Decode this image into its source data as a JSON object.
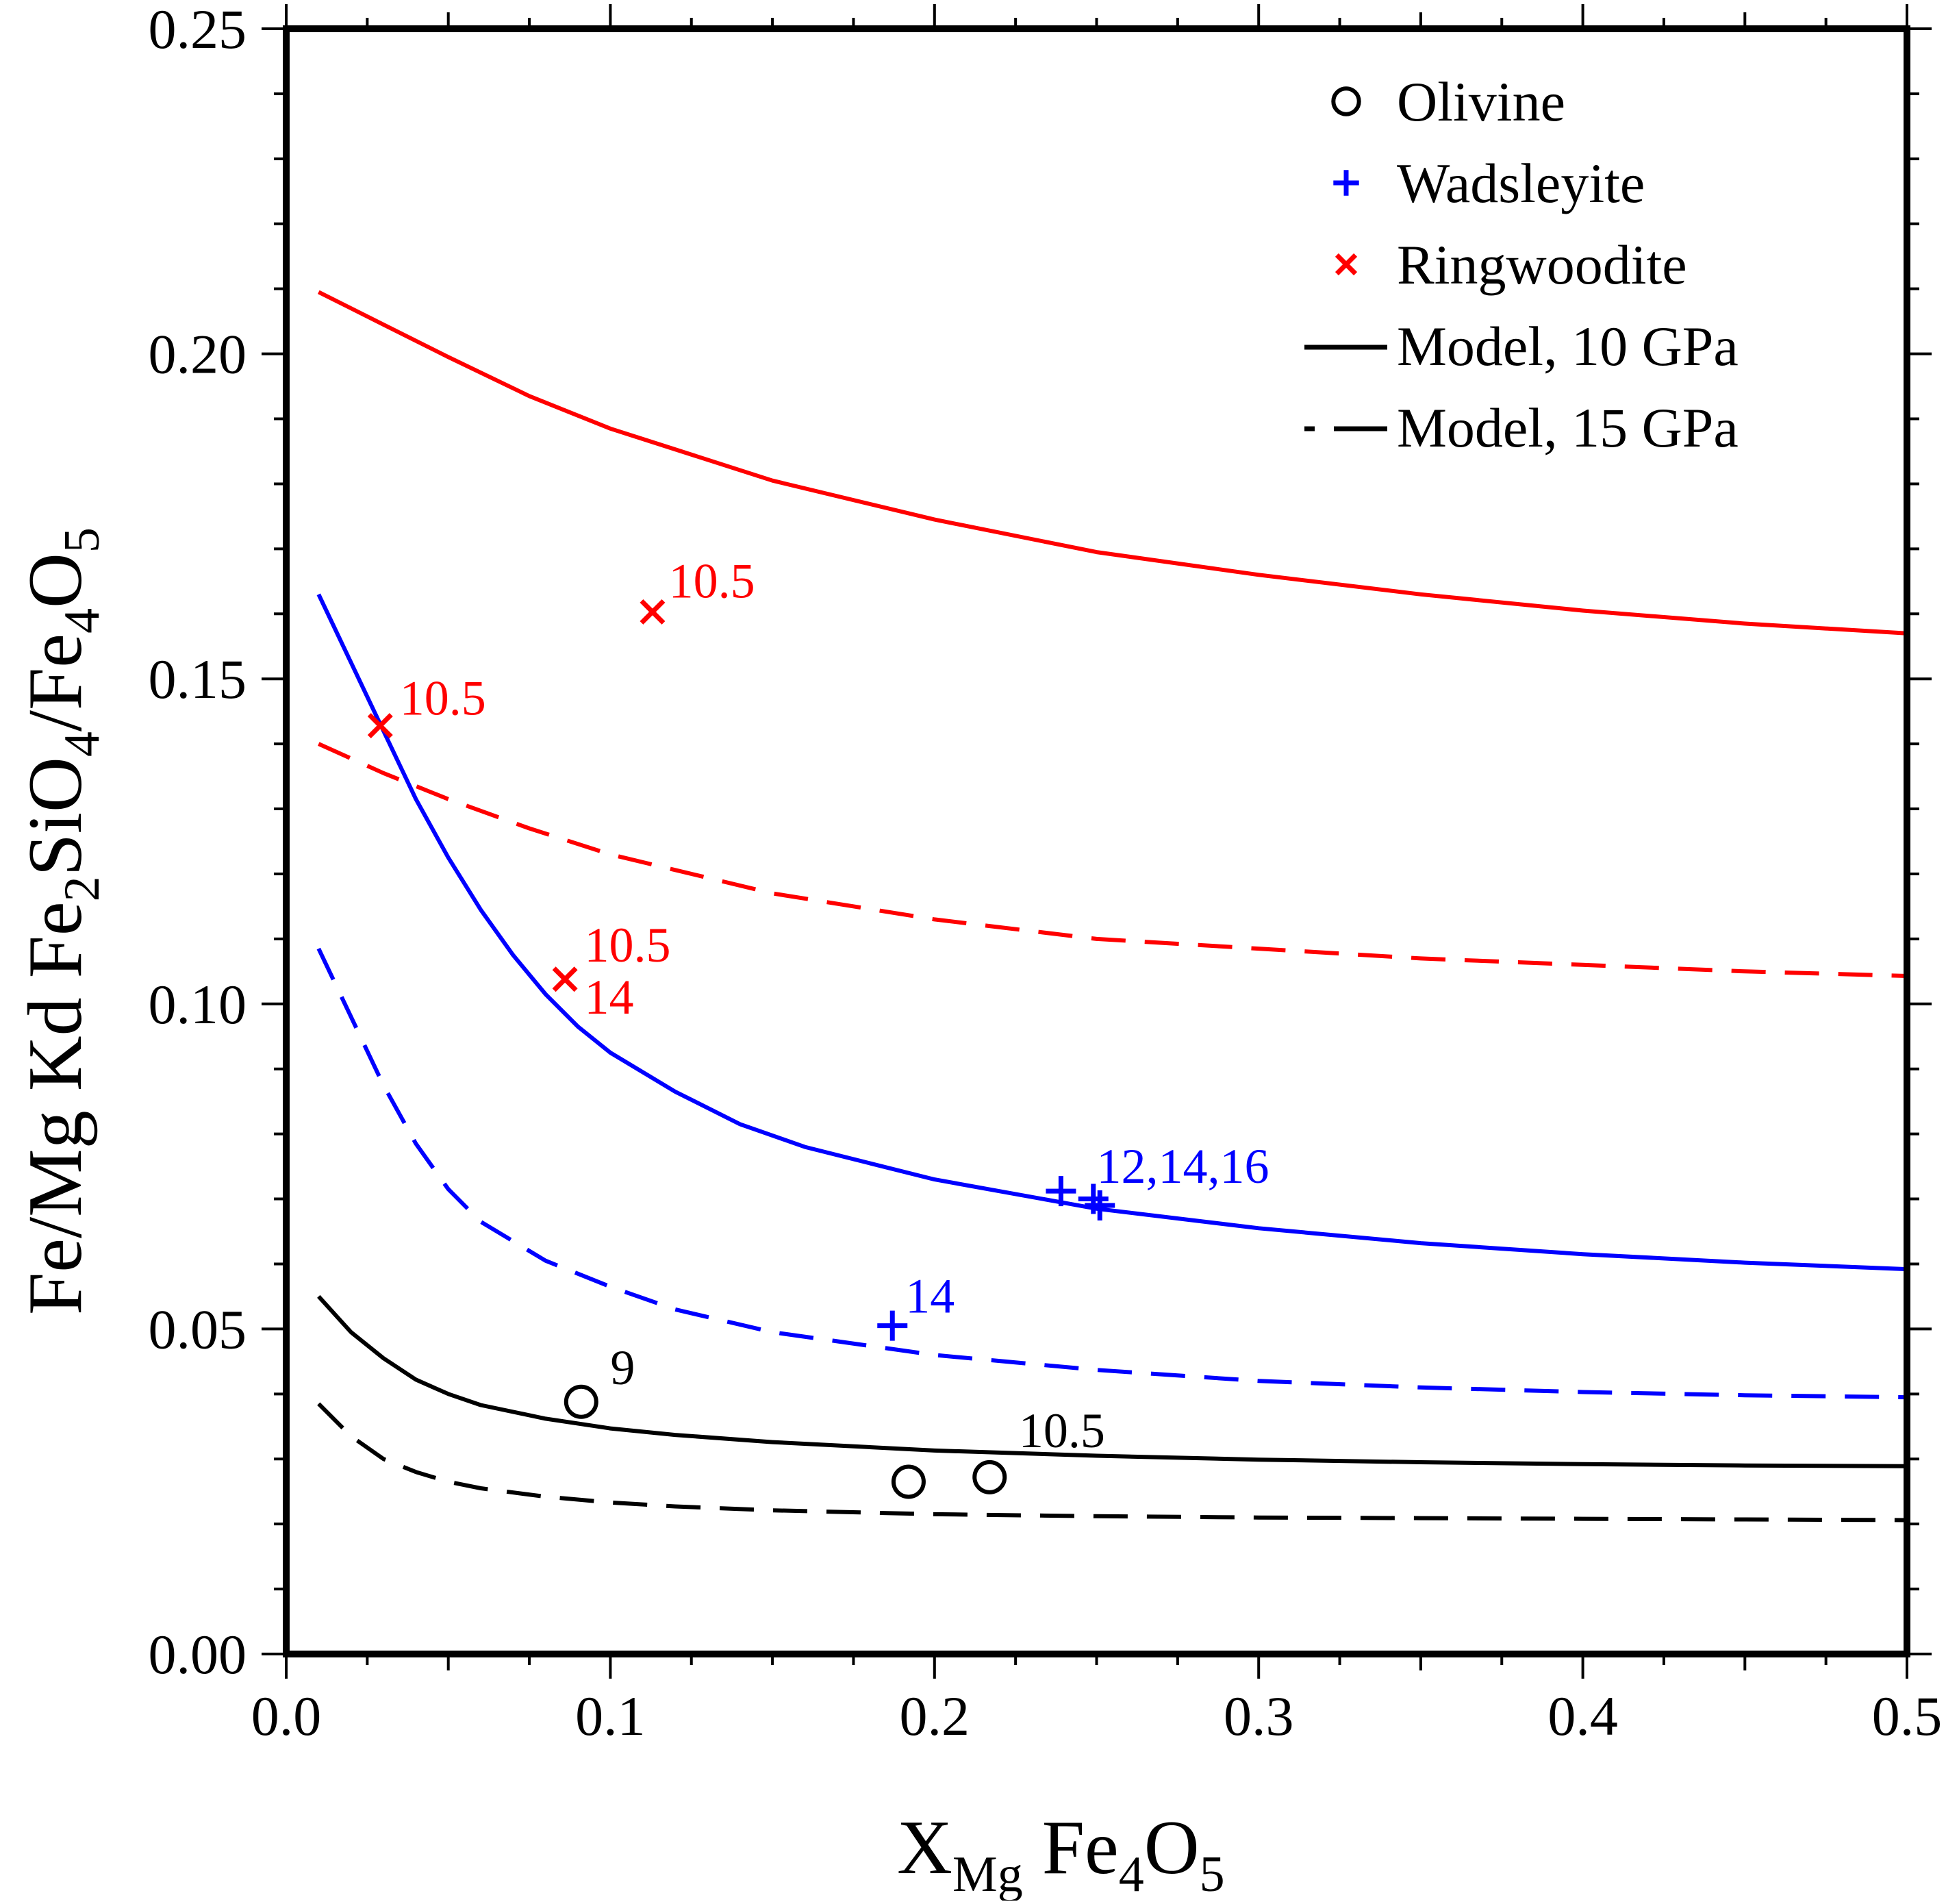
{
  "chart_data": {
    "type": "scatter",
    "xlabel": {
      "main": "X",
      "sub": "Mg",
      "tail": " Fe",
      "sub2": "4",
      "tail2": "O",
      "sub3": "5"
    },
    "ylabel": {
      "p1": "Fe/Mg Kd Fe",
      "s1": "2",
      "p2": "SiO",
      "s2": "4",
      "p3": "/Fe",
      "s3": "4",
      "p4": "O",
      "s4": "5"
    },
    "xlim": [
      0,
      0.5
    ],
    "ylim": [
      0,
      0.25
    ],
    "x_ticks": [
      0,
      0.1,
      0.2,
      0.3,
      0.4,
      0.5
    ],
    "x_tick_labels": [
      "0.0",
      "0.1",
      "0.2",
      "0.3",
      "0.4",
      "0.5"
    ],
    "y_ticks": [
      0,
      0.05,
      0.1,
      0.15,
      0.2,
      0.25
    ],
    "y_tick_labels": [
      "0.00",
      "0.05",
      "0.10",
      "0.15",
      "0.20",
      "0.25"
    ],
    "grid": false,
    "legend_position": "top-right",
    "legend": [
      {
        "label": "Olivine",
        "symbol": "circle",
        "color": "#000000"
      },
      {
        "label": "Wadsleyite",
        "symbol": "plus",
        "color": "#0000ff"
      },
      {
        "label": "Ringwoodite",
        "symbol": "cross",
        "color": "#ff0000"
      },
      {
        "label": "Model, 10 GPa",
        "symbol": "solid",
        "color": "#000000"
      },
      {
        "label": "Model, 15 GPa",
        "symbol": "dashed",
        "color": "#000000"
      }
    ],
    "points": [
      {
        "phase": "Olivine",
        "symbol": "circle",
        "color": "#000000",
        "data": [
          [
            0.091,
            0.0388
          ],
          [
            0.192,
            0.0265
          ],
          [
            0.217,
            0.0272
          ]
        ]
      },
      {
        "phase": "Wadsleyite",
        "symbol": "plus",
        "color": "#0000ff",
        "data": [
          [
            0.187,
            0.0505
          ],
          [
            0.239,
            0.0712
          ],
          [
            0.249,
            0.07
          ],
          [
            0.251,
            0.069
          ]
        ]
      },
      {
        "phase": "Ringwoodite",
        "symbol": "cross",
        "color": "#ff0000",
        "data": [
          [
            0.113,
            0.1603
          ],
          [
            0.029,
            0.1428
          ],
          [
            0.086,
            0.1038
          ]
        ]
      }
    ],
    "annotations": [
      {
        "text": "10.5",
        "x": 0.118,
        "y": 0.1625,
        "color": "#ff0000"
      },
      {
        "text": "10.5",
        "x": 0.035,
        "y": 0.1445,
        "color": "#ff0000"
      },
      {
        "text": "10.5",
        "x": 0.092,
        "y": 0.1065,
        "color": "#ff0000"
      },
      {
        "text": "14",
        "x": 0.092,
        "y": 0.0985,
        "color": "#ff0000"
      },
      {
        "text": "12,14,16",
        "x": 0.25,
        "y": 0.0725,
        "color": "#0000ff"
      },
      {
        "text": "14",
        "x": 0.191,
        "y": 0.0525,
        "color": "#0000ff"
      },
      {
        "text": "9",
        "x": 0.1,
        "y": 0.0415,
        "color": "#000000"
      },
      {
        "text": "10.5",
        "x": 0.226,
        "y": 0.0318,
        "color": "#000000"
      }
    ],
    "series": [
      {
        "phase": "Ringwoodite",
        "pressure": "10 GPa",
        "color": "#ff0000",
        "dash": "solid",
        "x": [
          0.01,
          0.03,
          0.05,
          0.075,
          0.1,
          0.15,
          0.2,
          0.25,
          0.3,
          0.35,
          0.4,
          0.45,
          0.5
        ],
        "y": [
          0.2095,
          0.2045,
          0.1995,
          0.1935,
          0.1885,
          0.1805,
          0.1745,
          0.1695,
          0.166,
          0.163,
          0.1605,
          0.1585,
          0.157
        ]
      },
      {
        "phase": "Ringwoodite",
        "pressure": "15 GPa",
        "color": "#ff0000",
        "dash": "dashed",
        "x": [
          0.01,
          0.03,
          0.05,
          0.075,
          0.1,
          0.15,
          0.2,
          0.25,
          0.3,
          0.35,
          0.4,
          0.45,
          0.5
        ],
        "y": [
          0.14,
          0.1355,
          0.1315,
          0.127,
          0.123,
          0.117,
          0.113,
          0.11,
          0.1085,
          0.107,
          0.106,
          0.105,
          0.1043
        ]
      },
      {
        "phase": "Wadsleyite",
        "pressure": "10 GPa",
        "color": "#0000ff",
        "dash": "solid",
        "x": [
          0.01,
          0.02,
          0.03,
          0.04,
          0.05,
          0.06,
          0.07,
          0.08,
          0.09,
          0.1,
          0.12,
          0.14,
          0.16,
          0.18,
          0.2,
          0.25,
          0.3,
          0.35,
          0.4,
          0.45,
          0.5
        ],
        "y": [
          0.163,
          0.1525,
          0.142,
          0.1315,
          0.1225,
          0.1145,
          0.1075,
          0.1015,
          0.0965,
          0.0925,
          0.0865,
          0.0815,
          0.078,
          0.0755,
          0.073,
          0.0685,
          0.0655,
          0.0632,
          0.0615,
          0.0602,
          0.0592
        ]
      },
      {
        "phase": "Wadsleyite",
        "pressure": "15 GPa",
        "color": "#0000ff",
        "dash": "dashed",
        "x": [
          0.01,
          0.02,
          0.03,
          0.04,
          0.05,
          0.06,
          0.08,
          0.1,
          0.12,
          0.15,
          0.2,
          0.25,
          0.3,
          0.35,
          0.4,
          0.45,
          0.5
        ],
        "y": [
          0.1085,
          0.098,
          0.0875,
          0.0785,
          0.0715,
          0.0665,
          0.0605,
          0.0565,
          0.053,
          0.0495,
          0.046,
          0.0437,
          0.042,
          0.041,
          0.0403,
          0.0398,
          0.0395
        ]
      },
      {
        "phase": "Olivine",
        "pressure": "10 GPa",
        "color": "#000000",
        "dash": "solid",
        "x": [
          0.01,
          0.02,
          0.03,
          0.04,
          0.05,
          0.06,
          0.08,
          0.1,
          0.12,
          0.15,
          0.2,
          0.25,
          0.3,
          0.35,
          0.4,
          0.45,
          0.5
        ],
        "y": [
          0.055,
          0.0495,
          0.0455,
          0.0422,
          0.04,
          0.0383,
          0.0362,
          0.0347,
          0.0337,
          0.0326,
          0.0313,
          0.0305,
          0.0299,
          0.0295,
          0.0292,
          0.029,
          0.0289
        ]
      },
      {
        "phase": "Olivine",
        "pressure": "15 GPa",
        "color": "#000000",
        "dash": "dashed",
        "x": [
          0.01,
          0.02,
          0.03,
          0.04,
          0.05,
          0.06,
          0.08,
          0.1,
          0.12,
          0.15,
          0.2,
          0.25,
          0.3,
          0.35,
          0.4,
          0.45,
          0.5
        ],
        "y": [
          0.0385,
          0.0335,
          0.03,
          0.028,
          0.0265,
          0.0255,
          0.0242,
          0.0233,
          0.0227,
          0.0221,
          0.0215,
          0.0212,
          0.021,
          0.0209,
          0.0208,
          0.0207,
          0.0206
        ]
      }
    ]
  }
}
